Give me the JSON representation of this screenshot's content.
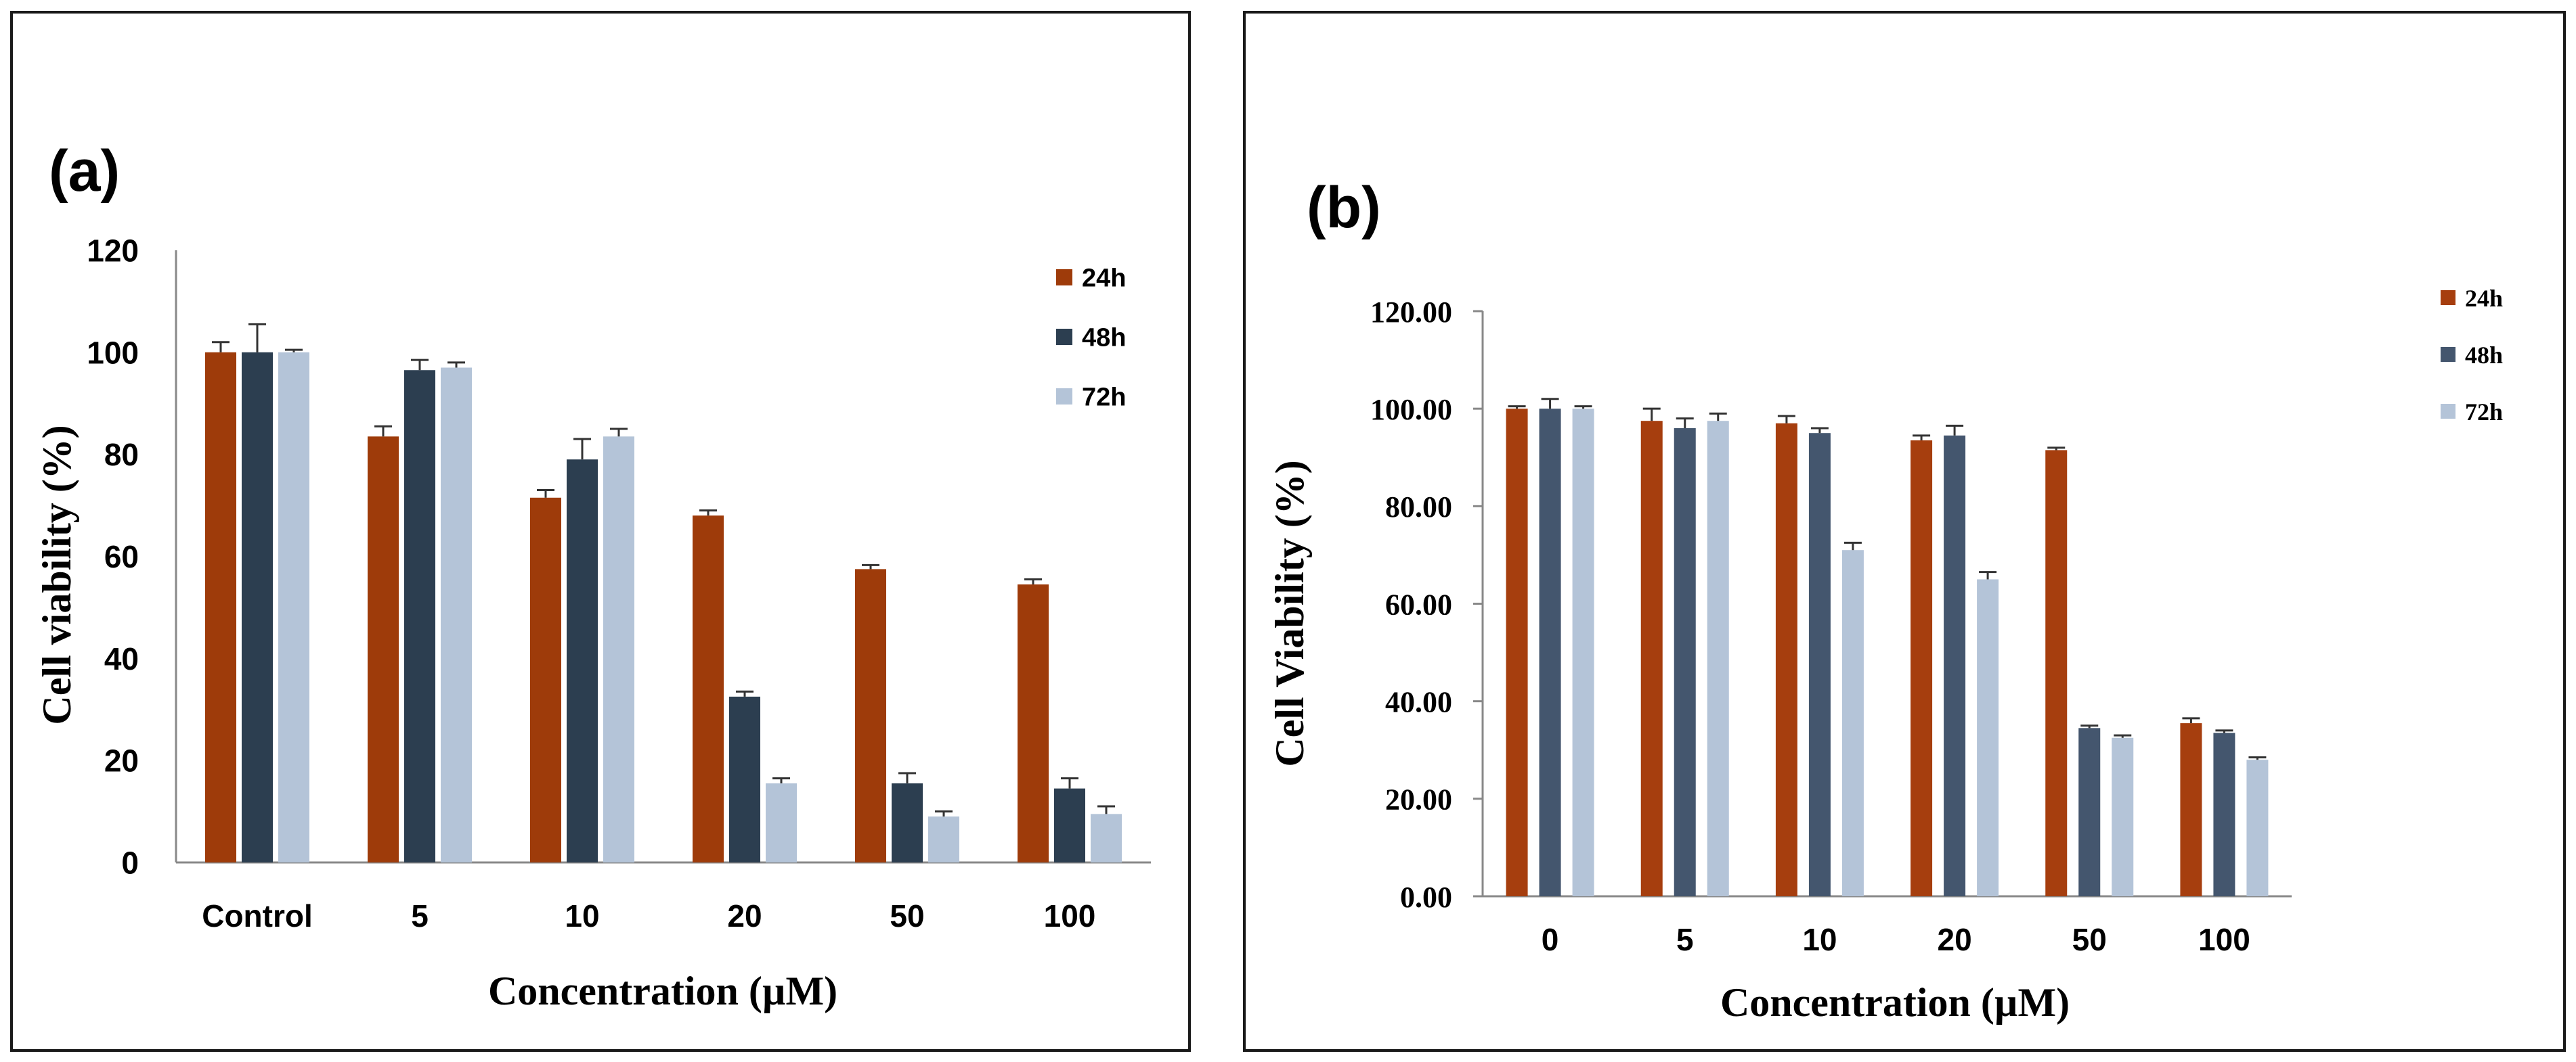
{
  "chart_data": [
    {
      "id": "a",
      "type": "bar",
      "panel_label": "(a)",
      "title": "",
      "xlabel": "Concentration (µM)",
      "ylabel": "Cell viability (%)",
      "ylim": [
        0,
        120
      ],
      "ytick_step": 20,
      "ytick_labels": [
        "0",
        "20",
        "40",
        "60",
        "80",
        "100",
        "120"
      ],
      "categories": [
        "Control",
        "5",
        "10",
        "20",
        "50",
        "100"
      ],
      "legend_position": "top-right",
      "series": [
        {
          "name": "24h",
          "color": "#9E3B0A",
          "values": [
            100,
            83.5,
            71.5,
            68,
            57.5,
            54.5
          ],
          "errors": [
            2,
            2,
            1.5,
            1,
            0.8,
            1
          ]
        },
        {
          "name": "48h",
          "color": "#2C3E50",
          "values": [
            100,
            96.5,
            79,
            32.5,
            15.5,
            14.5
          ],
          "errors": [
            5.5,
            2,
            4,
            1,
            2,
            2
          ]
        },
        {
          "name": "72h",
          "color": "#B4C4D8",
          "values": [
            100,
            97,
            83.5,
            15.5,
            9,
            9.5
          ],
          "errors": [
            0.5,
            1,
            1.5,
            1,
            1,
            1.5
          ]
        }
      ]
    },
    {
      "id": "b",
      "type": "bar",
      "panel_label": "(b)",
      "title": "",
      "xlabel": "Concentration (µM)",
      "ylabel": "Cell Viability (%)",
      "ylim": [
        0,
        120
      ],
      "ytick_step": 20,
      "ytick_labels": [
        "0.00",
        "20.00",
        "40.00",
        "60.00",
        "80.00",
        "100.00",
        "120.00"
      ],
      "categories": [
        "0",
        "5",
        "10",
        "20",
        "50",
        "100"
      ],
      "legend_position": "top-right",
      "series": [
        {
          "name": "24h",
          "color": "#A63E0E",
          "values": [
            100,
            97.5,
            97,
            93.5,
            91.5,
            35.5
          ],
          "errors": [
            0.5,
            2.5,
            1.5,
            1,
            0.5,
            1
          ]
        },
        {
          "name": "48h",
          "color": "#44566E",
          "values": [
            100,
            96,
            95,
            94.5,
            34.5,
            33.5
          ],
          "errors": [
            2,
            2,
            1,
            2,
            0.5,
            0.5
          ]
        },
        {
          "name": "72h",
          "color": "#B4C4D8",
          "values": [
            100,
            97.5,
            71,
            65,
            32.5,
            28
          ],
          "errors": [
            0.5,
            1.5,
            1.5,
            1.5,
            0.5,
            0.5
          ]
        }
      ]
    }
  ]
}
